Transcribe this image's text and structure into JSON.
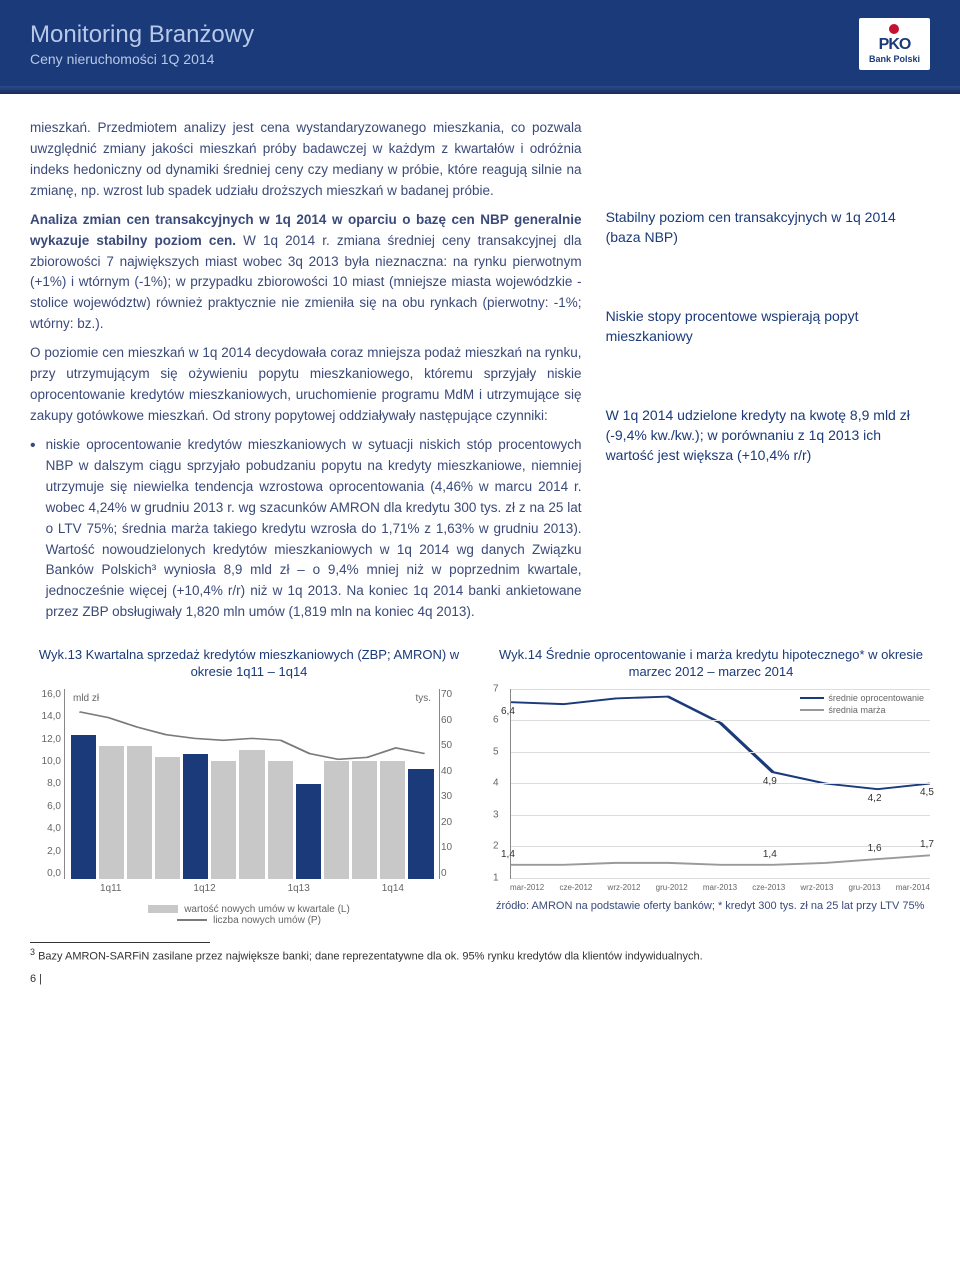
{
  "header": {
    "title": "Monitoring Branżowy",
    "subtitle": "Ceny nieruchomości 1Q 2014",
    "logo_brand": "PKO",
    "logo_sub": "Bank Polski"
  },
  "main": {
    "p1": "mieszkań. Przedmiotem analizy jest cena wystandaryzowanego mieszkania, co pozwala uwzględnić zmiany jakości mieszkań próby badawczej w każdym z kwartałów i odróżnia indeks hedoniczny od dynamiki średniej ceny czy mediany w próbie, które reagują silnie na zmianę, np. wzrost lub spadek udziału droższych mieszkań w badanej próbie.",
    "p2a": "Analiza zmian cen transakcyjnych w 1q 2014 w oparciu o bazę cen NBP generalnie wykazuje stabilny poziom cen.",
    "p2b": " W 1q 2014 r. zmiana średniej ceny transakcyjnej dla zbiorowości 7 największych miast wobec 3q 2013 była nieznaczna: na rynku pierwotnym (+1%) i wtórnym (-1%); w przypadku zbiorowości 10 miast (mniejsze miasta wojewódzkie - stolice województw) również praktycznie nie zmieniła się na obu rynkach (pierwotny: -1%; wtórny: bz.).",
    "p3": "O poziomie cen mieszkań w 1q 2014 decydowała coraz mniejsza podaż mieszkań na rynku, przy utrzymującym się ożywieniu popytu mieszkaniowego, któremu sprzyjały niskie oprocentowanie kredytów mieszkaniowych, uruchomienie programu MdM i utrzymujące się zakupy gotówkowe mieszkań. Od strony popytowej oddziaływały następujące czynniki:",
    "bullet": "niskie oprocentowanie kredytów mieszkaniowych w sytuacji niskich stóp procentowych NBP w dalszym ciągu sprzyjało pobudzaniu popytu na kredyty mieszkaniowe, niemniej utrzymuje się niewielka tendencja wzrostowa oprocentowania (4,46% w marcu 2014 r. wobec 4,24% w grudniu 2013 r. wg szacunków AMRON dla kredytu 300 tys. zł z na 25 lat o LTV 75%; średnia marża takiego kredytu wzrosła do 1,71% z 1,63% w grudniu 2013). Wartość nowoudzielonych kredytów mieszkaniowych w 1q 2014 wg danych Związku Banków Polskich³ wyniosła 8,9 mld zł – o 9,4% mniej niż w poprzednim kwartale, jednocześnie więcej (+10,4% r/r) niż w 1q 2013. Na koniec 1q 2014 banki ankietowane przez ZBP obsługiwały 1,820 mln umów (1,819 mln na koniec 4q 2013)."
  },
  "side": {
    "s1": "Stabilny poziom cen transakcyjnych w 1q 2014 (baza NBP)",
    "s2": "Niskie stopy procentowe wspierają popyt mieszkaniowy",
    "s3": "W 1q 2014  udzielone kredyty na kwotę 8,9 mld zł (-9,4% kw./kw.);   w porównaniu z  1q 2013  ich wartość jest większa  (+10,4%  r/r)"
  },
  "chart1": {
    "title": "Wyk.13  Kwartalna sprzedaż kredytów mieszkaniowych (ZBP; AMRON) w okresie 1q11 – 1q14",
    "unit_left": "mld zł",
    "unit_right": "tys.",
    "y_left": [
      "16,0",
      "14,0",
      "12,0",
      "10,0",
      "8,0",
      "6,0",
      "4,0",
      "2,0",
      "0,0"
    ],
    "y_right": [
      "70",
      "60",
      "50",
      "40",
      "30",
      "20",
      "10",
      "0"
    ],
    "x": [
      "1q11",
      "1q12",
      "1q13",
      "1q14"
    ],
    "bar_heights_pct": [
      76,
      70,
      70,
      64,
      66,
      62,
      68,
      62,
      50,
      62,
      62,
      62,
      58
    ],
    "bar_colors": [
      "#1a3a7a",
      "#c8c8c8",
      "#c8c8c8",
      "#c8c8c8",
      "#1a3a7a",
      "#c8c8c8",
      "#c8c8c8",
      "#c8c8c8",
      "#1a3a7a",
      "#c8c8c8",
      "#c8c8c8",
      "#c8c8c8",
      "#1a3a7a"
    ],
    "line_color": "#7a7a7a",
    "line_points": [
      88,
      85,
      80,
      76,
      74,
      73,
      74,
      73,
      66,
      63,
      64,
      69,
      66
    ],
    "legend1": "wartość nowych umów w kwartale (L)",
    "legend2": "liczba nowych umów (P)"
  },
  "chart2": {
    "title": "Wyk.14  Średnie oprocentowanie i marża kredytu hipotecznego* w okresie marzec 2012 – marzec 2014",
    "y_labels": [
      "7",
      "6",
      "5",
      "4",
      "3",
      "2",
      "1"
    ],
    "x_labels": [
      "mar-2012",
      "cze-2012",
      "wrz-2012",
      "gru-2012",
      "mar-2013",
      "cze-2013",
      "wrz-2013",
      "gru-2013",
      "mar-2014"
    ],
    "series1": {
      "name": "średnie oprocentowanie",
      "color": "#1a3a7a",
      "points": [
        93,
        92,
        95,
        96,
        82,
        56,
        50,
        47,
        50
      ],
      "labels": {
        "0": "6,4",
        "5": "4,9",
        "7": "4,2",
        "8": "4,5"
      }
    },
    "series2": {
      "name": "średnia marża",
      "color": "#9a9a9a",
      "points": [
        7,
        7,
        8,
        8,
        7,
        7,
        8,
        10,
        12
      ],
      "labels": {
        "0": "1,4",
        "5": "1,4",
        "7": "1,6",
        "8": "1,7"
      }
    },
    "source": "źródło: AMRON na podstawie oferty banków; * kredyt 300 tys. zł na 25 lat przy LTV 75%"
  },
  "footnote": "Bazy AMRON-SARFiN zasilane przez największe banki; dane reprezentatywne dla ok. 95% rynku kredytów dla klientów indywidualnych.",
  "footnote_num": "3",
  "page_num": "6 |"
}
